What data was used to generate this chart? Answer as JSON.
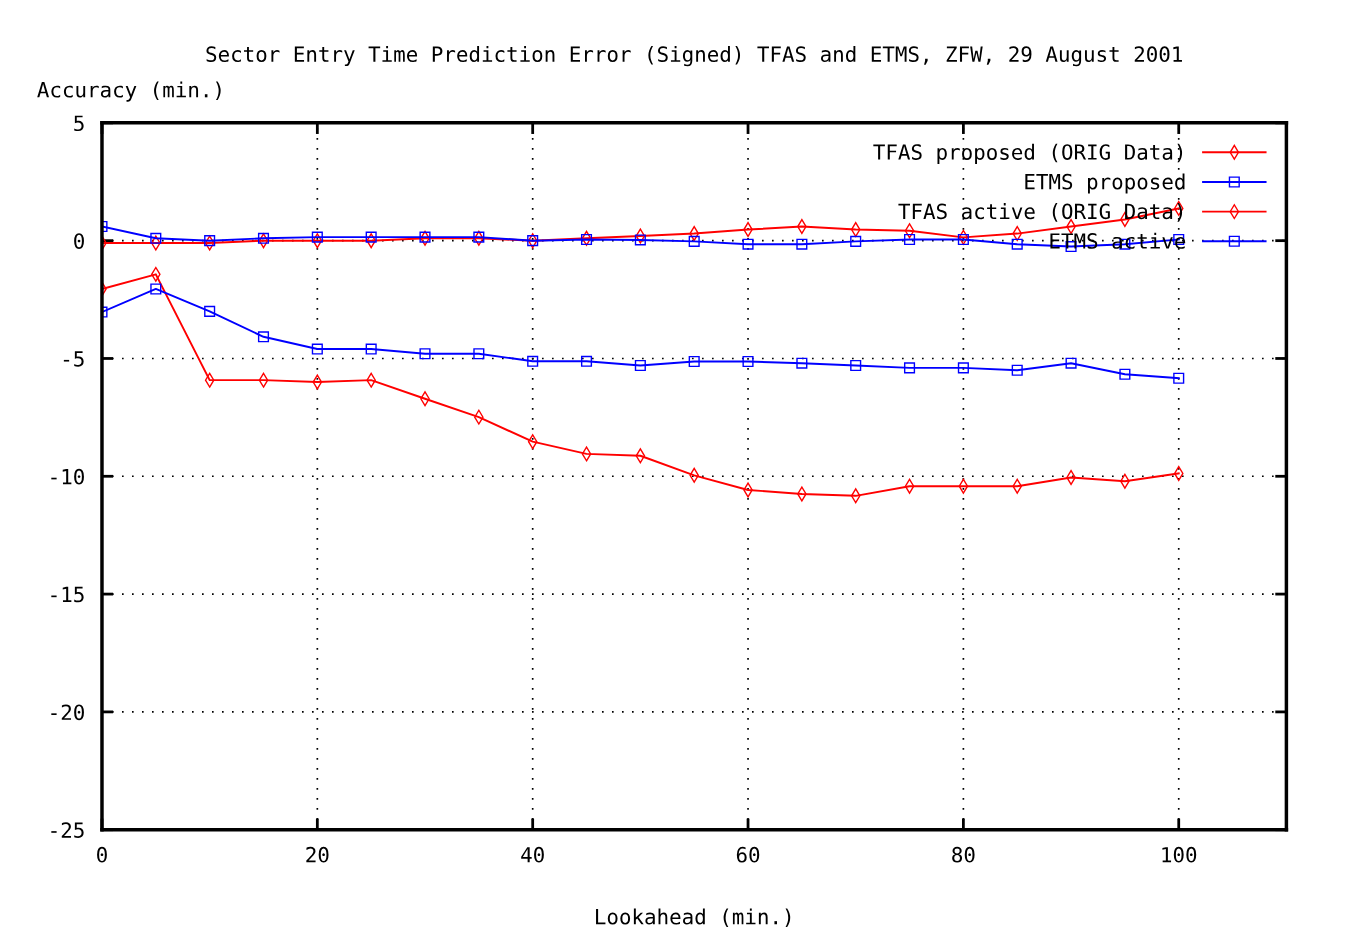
{
  "chart_data": {
    "type": "line",
    "title": "Sector Entry Time Prediction Error (Signed) TFAS and ETMS, ZFW, 29 August 2001",
    "xlabel": "Lookahead (min.)",
    "ylabel": "Accuracy (min.)",
    "x": [
      0,
      5,
      10,
      15,
      20,
      25,
      30,
      35,
      40,
      45,
      50,
      55,
      60,
      65,
      70,
      75,
      80,
      85,
      90,
      95,
      100
    ],
    "series": [
      {
        "name": "TFAS proposed (ORIG Data)",
        "color": "#ff0000",
        "marker": "diamond",
        "values": [
          -0.1,
          -0.1,
          -0.1,
          0,
          0,
          0,
          0.1,
          0.1,
          0,
          0.1,
          0.2,
          0.3,
          0.47,
          0.6,
          0.47,
          0.42,
          0.14,
          0.3,
          0.6,
          0.9,
          1.37
        ]
      },
      {
        "name": "ETMS proposed",
        "color": "#0000ff",
        "marker": "square",
        "values": [
          0.6,
          0.1,
          0,
          0.1,
          0.15,
          0.15,
          0.15,
          0.15,
          0,
          0.05,
          0.03,
          -0.03,
          -0.15,
          -0.15,
          -0.03,
          0.05,
          0.05,
          -0.15,
          -0.25,
          -0.15,
          0.05
        ]
      },
      {
        "name": "TFAS active (ORIG Data)",
        "color": "#ff0000",
        "marker": "diamond",
        "values": [
          -2.05,
          -1.43,
          -5.92,
          -5.92,
          -6.0,
          -5.92,
          -6.71,
          -7.49,
          -8.53,
          -9.05,
          -9.13,
          -9.96,
          -10.58,
          -10.75,
          -10.83,
          -10.42,
          -10.42,
          -10.42,
          -10.05,
          -10.21,
          -9.88
        ]
      },
      {
        "name": "ETMS active",
        "color": "#0000ff",
        "marker": "square",
        "values": [
          -3.03,
          -2.05,
          -3.0,
          -4.08,
          -4.6,
          -4.6,
          -4.8,
          -4.8,
          -5.12,
          -5.12,
          -5.3,
          -5.13,
          -5.13,
          -5.2,
          -5.3,
          -5.4,
          -5.4,
          -5.5,
          -5.2,
          -5.67,
          -5.84
        ]
      }
    ],
    "xlim": [
      0,
      110
    ],
    "xticks": [
      0,
      20,
      40,
      60,
      80,
      100
    ],
    "ylim": [
      -25,
      5
    ],
    "yticks": [
      -25,
      -20,
      -15,
      -10,
      -5,
      0,
      5
    ],
    "grid": true,
    "legend": "top right",
    "line_style": "solid"
  }
}
